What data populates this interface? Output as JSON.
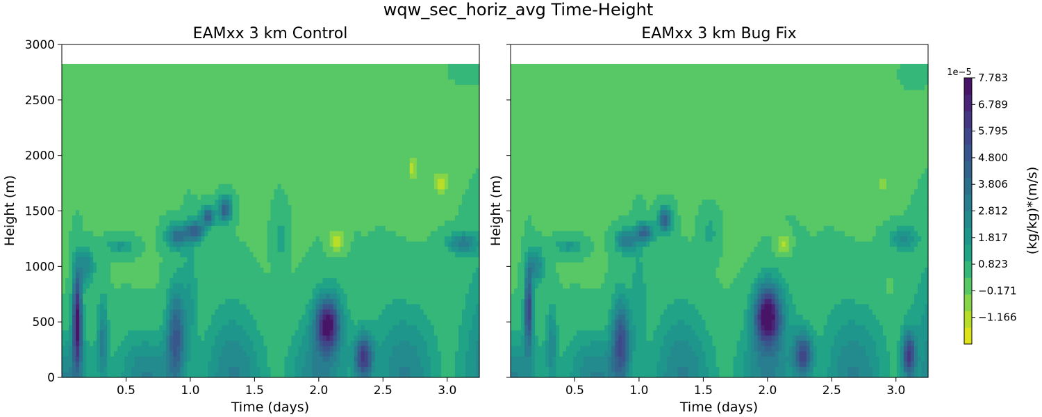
{
  "suptitle": "wqw_sec_horiz_avg Time-Height",
  "chart_data": [
    {
      "type": "heatmap",
      "title": "EAMxx 3 km Control",
      "xlabel": "Time (days)",
      "ylabel": "Height (m)",
      "xlim": [
        0.0,
        3.25
      ],
      "ylim": [
        0,
        3000
      ],
      "data_top": 2825,
      "xticks": [
        0.5,
        1.0,
        1.5,
        2.0,
        2.5,
        3.0
      ],
      "xtick_labels": [
        "0.5",
        "1.0",
        "1.5",
        "2.0",
        "2.5",
        "3.0"
      ],
      "yticks": [
        0,
        500,
        1000,
        1500,
        2000,
        2500,
        3000
      ],
      "ytick_labels": [
        "0",
        "500",
        "1000",
        "1500",
        "2000",
        "2500",
        "3000"
      ],
      "units": "(kg/kg)*(m/s)",
      "scale": "1e-5",
      "features": [
        {
          "t": 0.12,
          "h": 520,
          "dt": 0.035,
          "dh": 420,
          "v": 7.4
        },
        {
          "t": 0.19,
          "h": 1000,
          "dt": 0.06,
          "dh": 150,
          "v": 2.8
        },
        {
          "t": 0.32,
          "h": 330,
          "dt": 0.04,
          "dh": 380,
          "v": 2.8
        },
        {
          "t": 0.45,
          "h": 1180,
          "dt": 0.1,
          "dh": 70,
          "v": 1.8
        },
        {
          "t": 0.89,
          "h": 380,
          "dt": 0.07,
          "dh": 420,
          "v": 4.5
        },
        {
          "t": 0.9,
          "h": 1270,
          "dt": 0.08,
          "dh": 110,
          "v": 3.8
        },
        {
          "t": 1.04,
          "h": 1320,
          "dt": 0.07,
          "dh": 90,
          "v": 4.6
        },
        {
          "t": 1.14,
          "h": 1450,
          "dt": 0.05,
          "dh": 90,
          "v": 4.4
        },
        {
          "t": 1.27,
          "h": 1510,
          "dt": 0.05,
          "dh": 110,
          "v": 4.6
        },
        {
          "t": 1.0,
          "h": 700,
          "dt": 0.06,
          "dh": 500,
          "v": 1.5
        },
        {
          "t": 1.7,
          "h": 1250,
          "dt": 0.05,
          "dh": 250,
          "v": 1.2
        },
        {
          "t": 2.07,
          "h": 480,
          "dt": 0.09,
          "dh": 230,
          "v": 6.6
        },
        {
          "t": 2.35,
          "h": 180,
          "dt": 0.07,
          "dh": 200,
          "v": 5.8
        },
        {
          "t": 2.14,
          "h": 1230,
          "dt": 0.06,
          "dh": 110,
          "v": -1.4
        },
        {
          "t": 2.73,
          "h": 1880,
          "dt": 0.025,
          "dh": 110,
          "v": -1.4
        },
        {
          "t": 2.95,
          "h": 1760,
          "dt": 0.06,
          "dh": 90,
          "v": -1.4
        },
        {
          "t": 3.12,
          "h": 1210,
          "dt": 0.11,
          "dh": 90,
          "v": 3.2
        },
        {
          "t": 3.15,
          "h": 2760,
          "dt": 0.1,
          "dh": 90,
          "v": 0.5
        }
      ]
    },
    {
      "type": "heatmap",
      "title": "EAMxx 3 km Bug Fix",
      "xlabel": "Time (days)",
      "ylabel": "Height (m)",
      "xlim": [
        0.0,
        3.25
      ],
      "ylim": [
        0,
        3000
      ],
      "data_top": 2825,
      "xticks": [
        0.5,
        1.0,
        1.5,
        2.0,
        2.5,
        3.0
      ],
      "xtick_labels": [
        "0.5",
        "1.0",
        "1.5",
        "2.0",
        "2.5",
        "3.0"
      ],
      "yticks": [
        0,
        500,
        1000,
        1500,
        2000,
        2500,
        3000
      ],
      "ytick_labels": [
        "",
        "",
        "",
        "",
        "",
        "",
        ""
      ],
      "units": "(kg/kg)*(m/s)",
      "scale": "1e-5",
      "features": [
        {
          "t": 0.14,
          "h": 620,
          "dt": 0.03,
          "dh": 360,
          "v": 5.8
        },
        {
          "t": 0.2,
          "h": 1000,
          "dt": 0.06,
          "dh": 150,
          "v": 2.8
        },
        {
          "t": 0.32,
          "h": 300,
          "dt": 0.04,
          "dh": 330,
          "v": 2.4
        },
        {
          "t": 0.45,
          "h": 1180,
          "dt": 0.1,
          "dh": 70,
          "v": 1.8
        },
        {
          "t": 0.86,
          "h": 330,
          "dt": 0.07,
          "dh": 380,
          "v": 4.8
        },
        {
          "t": 0.9,
          "h": 1230,
          "dt": 0.08,
          "dh": 100,
          "v": 3.4
        },
        {
          "t": 1.04,
          "h": 1300,
          "dt": 0.07,
          "dh": 90,
          "v": 4.0
        },
        {
          "t": 1.2,
          "h": 1420,
          "dt": 0.05,
          "dh": 110,
          "v": 4.6
        },
        {
          "t": 1.0,
          "h": 700,
          "dt": 0.06,
          "dh": 500,
          "v": 1.4
        },
        {
          "t": 1.55,
          "h": 1300,
          "dt": 0.06,
          "dh": 170,
          "v": 1.2
        },
        {
          "t": 2.0,
          "h": 560,
          "dt": 0.1,
          "dh": 260,
          "v": 7.4
        },
        {
          "t": 2.28,
          "h": 200,
          "dt": 0.07,
          "dh": 200,
          "v": 5.0
        },
        {
          "t": 2.12,
          "h": 1200,
          "dt": 0.05,
          "dh": 100,
          "v": -1.1
        },
        {
          "t": 2.9,
          "h": 1750,
          "dt": 0.05,
          "dh": 100,
          "v": -0.6
        },
        {
          "t": 2.95,
          "h": 820,
          "dt": 0.02,
          "dh": 60,
          "v": -0.5
        },
        {
          "t": 3.06,
          "h": 1250,
          "dt": 0.1,
          "dh": 100,
          "v": 2.4
        },
        {
          "t": 3.1,
          "h": 200,
          "dt": 0.05,
          "dh": 200,
          "v": 5.4
        },
        {
          "t": 3.15,
          "h": 2720,
          "dt": 0.1,
          "dh": 90,
          "v": 0.5
        }
      ]
    }
  ],
  "colorbar": {
    "label": "(kg/kg)*(m/s)",
    "exponent": "1e−5",
    "min": -2.16,
    "max": 7.783,
    "tick_values": [
      -1.166,
      -0.171,
      0.823,
      1.817,
      2.812,
      3.806,
      4.8,
      5.795,
      6.789,
      7.783
    ],
    "tick_labels": [
      "−1.166",
      "−0.171",
      "0.823",
      "1.817",
      "2.812",
      "3.806",
      "4.800",
      "5.795",
      "6.789",
      "7.783"
    ],
    "colors": [
      "#dde318",
      "#b8de29",
      "#86d549",
      "#58c765",
      "#35b779",
      "#20a386",
      "#1f968b",
      "#238a8d",
      "#287d8e",
      "#2d708e",
      "#33638d",
      "#39568c",
      "#3f4788",
      "#453781",
      "#482576",
      "#481467"
    ]
  }
}
